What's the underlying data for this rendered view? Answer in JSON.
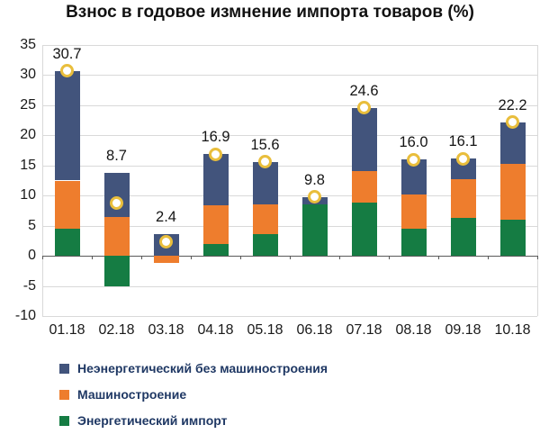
{
  "title": "Взнос в годовое измнение импорта товаров (%)",
  "colors": {
    "blue": "#42547c",
    "orange": "#ee7d2d",
    "green": "#157c43",
    "marker_ring": "#e9be3c",
    "marker_fill": "#ffffff",
    "grid": "#d9d9d9",
    "zero_axis": "#595959",
    "text": "#1a1a1a",
    "legend_text": "#1f3864"
  },
  "chart_data": {
    "type": "bar",
    "stacked": true,
    "title": "Взнос в годовое измнение импорта товаров (%)",
    "categories": [
      "01.18",
      "02.18",
      "03.18",
      "04.18",
      "05.18",
      "06.18",
      "07.18",
      "08.18",
      "09.18",
      "10.18"
    ],
    "series": [
      {
        "name": "Неэнергетический без машиностроения",
        "color_key": "blue",
        "values": [
          18.2,
          7.2,
          3.6,
          8.5,
          7.1,
          1.2,
          10.5,
          5.8,
          3.4,
          7.0
        ]
      },
      {
        "name": "Машиностроение",
        "color_key": "orange",
        "values": [
          8.0,
          6.5,
          -1.2,
          6.5,
          4.9,
          0,
          5.2,
          5.7,
          6.4,
          9.2
        ]
      },
      {
        "name": "Энергетический импорт",
        "color_key": "green",
        "values": [
          4.5,
          -5.0,
          0,
          1.9,
          3.6,
          8.6,
          8.9,
          4.5,
          6.3,
          6.0
        ]
      }
    ],
    "stack_order_bottom_to_top": [
      "green",
      "orange",
      "blue"
    ],
    "totals": [
      30.7,
      8.7,
      2.4,
      16.9,
      15.6,
      9.8,
      24.6,
      16.0,
      16.1,
      22.2
    ],
    "total_labels": [
      "30.7",
      "8.7",
      "2.4",
      "16.9",
      "15.6",
      "9.8",
      "24.6",
      "16.0",
      "16.1",
      "22.2"
    ],
    "marker": "white-circle-gold-ring-at-total",
    "y_ticks": [
      35,
      30,
      25,
      20,
      15,
      10,
      5,
      0,
      -5,
      -10
    ],
    "ylim": [
      -10,
      35
    ],
    "xlabel": "",
    "ylabel": "",
    "grid": true,
    "legend_position": "bottom-left"
  },
  "legend": {
    "items": [
      {
        "label": "Неэнергетический без машиностроения",
        "color_key": "blue"
      },
      {
        "label": "Машиностроение",
        "color_key": "orange"
      },
      {
        "label": "Энергетический импорт",
        "color_key": "green"
      }
    ]
  }
}
